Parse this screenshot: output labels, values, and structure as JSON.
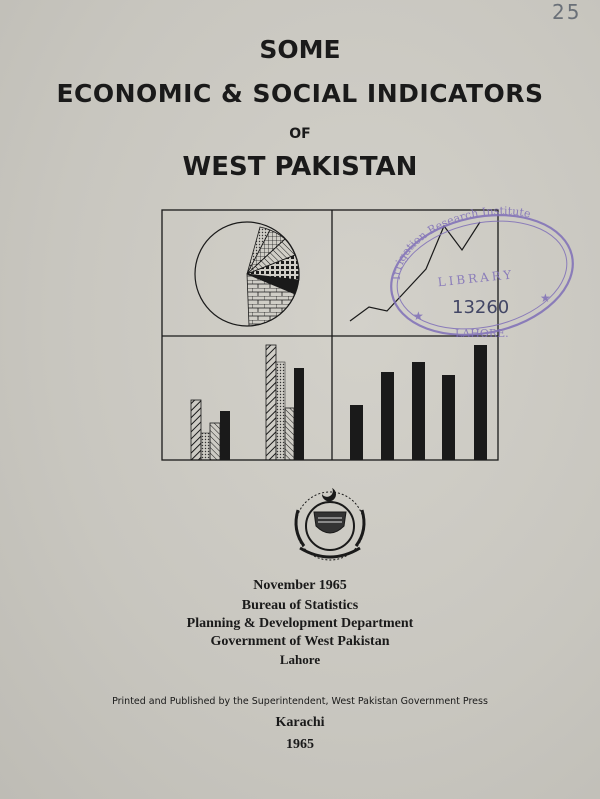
{
  "corner_note": "25",
  "title": {
    "line1": "SOME",
    "line2": "ECONOMIC & SOCIAL INDICATORS",
    "line3": "OF",
    "line4": "WEST PAKISTAN"
  },
  "stamp": {
    "institute": "Irrigation Research Institute",
    "library": "LIBRARY",
    "number": "13260",
    "city": "LAHORE."
  },
  "colors": {
    "ink": "#1a1a1a",
    "stamp": "#7f6fb8",
    "paper": "#cecbc4"
  },
  "publication": {
    "date": "November 1965",
    "bureau": "Bureau of Statistics",
    "department": "Planning & Development Department",
    "government": "Government of West Pakistan",
    "city": "Lahore",
    "printer": "Printed and Published by the Superintendent, West Pakistan Government Press",
    "print_city": "Karachi",
    "year": "1965"
  }
}
